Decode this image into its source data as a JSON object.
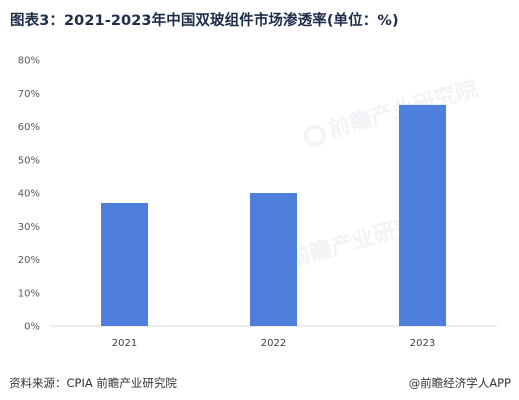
{
  "title": "图表3：2021-2023年中国双玻组件市场渗透率(单位：%)",
  "source": "资料来源：CPIA 前瞻产业研究院",
  "brand": "@前瞻经济学人APP",
  "watermark": "前瞻产业研究院",
  "colors": {
    "bar": "#4f7fdd",
    "axis": "#d9d9d9"
  },
  "chart_data": {
    "type": "bar",
    "categories": [
      "2021",
      "2022",
      "2023"
    ],
    "values": [
      37,
      40,
      66.5
    ],
    "ylim": [
      0,
      80
    ],
    "yticks": [
      "0%",
      "10%",
      "20%",
      "30%",
      "40%",
      "50%",
      "60%",
      "70%",
      "80%"
    ],
    "grid": false,
    "legend": "none"
  }
}
